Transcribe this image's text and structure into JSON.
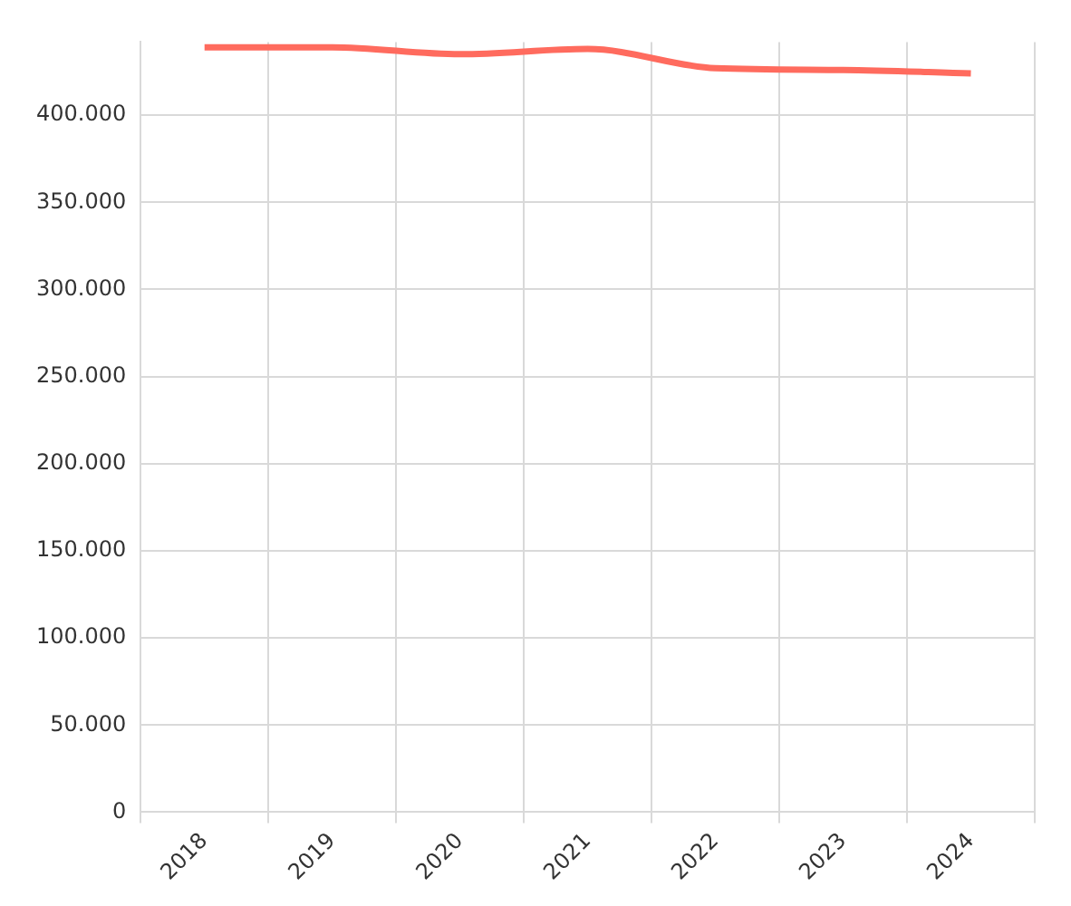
{
  "chart_data": {
    "type": "line",
    "categories": [
      "2018",
      "2019",
      "2020",
      "2021",
      "2022",
      "2023",
      "2024"
    ],
    "series": [
      {
        "color": "#ff6b5e",
        "values": [
          439000,
          439000,
          435000,
          438000,
          427000,
          426000,
          424000
        ]
      }
    ],
    "ylim": [
      0,
      442000
    ],
    "yticks": [
      {
        "value": 0,
        "label": "0"
      },
      {
        "value": 50000,
        "label": "50.000"
      },
      {
        "value": 100000,
        "label": "100.000"
      },
      {
        "value": 150000,
        "label": "150.000"
      },
      {
        "value": 200000,
        "label": "200.000"
      },
      {
        "value": 250000,
        "label": "250.000"
      },
      {
        "value": 300000,
        "label": "300.000"
      },
      {
        "value": 350000,
        "label": "350.000"
      },
      {
        "value": 400000,
        "label": "400.000"
      }
    ],
    "grid": true,
    "marker": "none"
  }
}
